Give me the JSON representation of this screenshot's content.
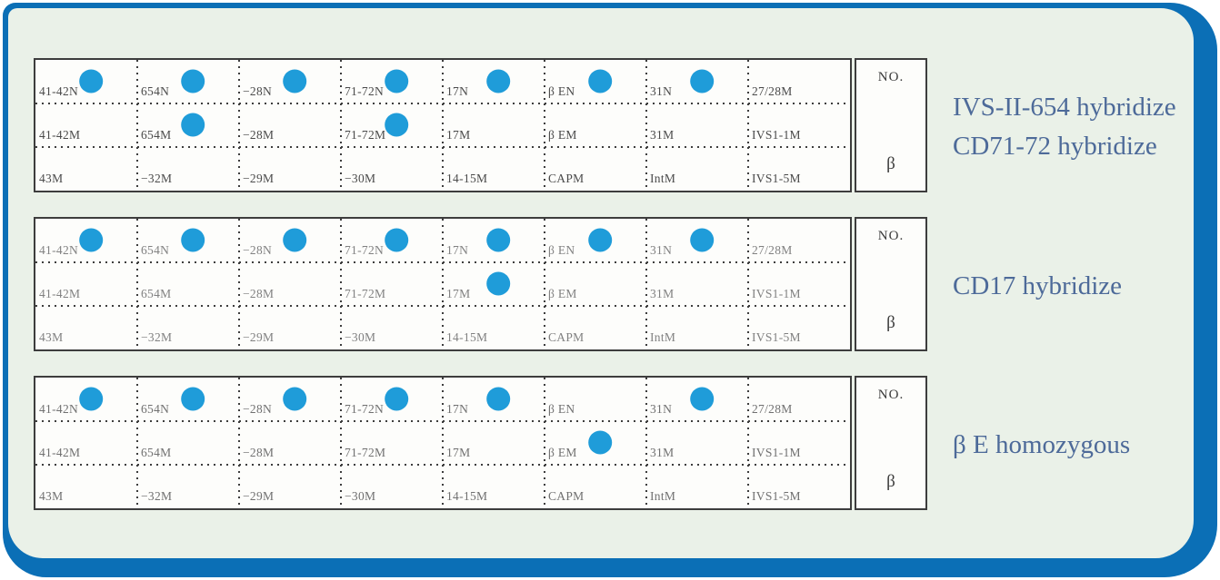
{
  "colors": {
    "frame-blue": "#0b6fb6",
    "panel-green": "#eaf1e8",
    "dot-blue": "#1f9cd9",
    "caption-slate": "#4d6a99",
    "grid-line": "#3d3d3d",
    "strip-bg": "#fdfdfb"
  },
  "grid_labels": {
    "row1": [
      "41-42N",
      "654N",
      "−28N",
      "71-72N",
      "17N",
      "β EN",
      "31N",
      "27/28M"
    ],
    "row2": [
      "41-42M",
      "654M",
      "−28M",
      "71-72M",
      "17M",
      "β EM",
      "31M",
      "IVS1-1M"
    ],
    "row3": [
      "43M",
      "−32M",
      "−29M",
      "−30M",
      "14-15M",
      "CAPM",
      "IntM",
      "IVS1-5M"
    ]
  },
  "no_box": {
    "top": "NO.",
    "bottom": "β"
  },
  "strips": [
    {
      "caption_lines": [
        "IVS-II-654 hybridize",
        "CD71-72 hybridize"
      ],
      "label_color": "#4a4a4a",
      "dots": {
        "row1": [
          1,
          1,
          1,
          1,
          1,
          1,
          1,
          0
        ],
        "row2": [
          0,
          1,
          0,
          1,
          0,
          0,
          0,
          0
        ],
        "row3": [
          0,
          0,
          0,
          0,
          0,
          0,
          0,
          0
        ]
      }
    },
    {
      "caption_lines": [
        "CD17 hybridize"
      ],
      "label_color": "#818181",
      "dots": {
        "row1": [
          1,
          1,
          1,
          1,
          1,
          1,
          1,
          0
        ],
        "row2": [
          0,
          0,
          0,
          0,
          1,
          0,
          0,
          0
        ],
        "row3": [
          0,
          0,
          0,
          0,
          0,
          0,
          0,
          0
        ]
      }
    },
    {
      "caption_lines": [
        "β E homozygous"
      ],
      "label_color": "#707070",
      "dots": {
        "row1": [
          1,
          1,
          1,
          1,
          1,
          0,
          1,
          0
        ],
        "row2": [
          0,
          0,
          0,
          0,
          0,
          1,
          0,
          0
        ],
        "row3": [
          0,
          0,
          0,
          0,
          0,
          0,
          0,
          0
        ]
      }
    }
  ]
}
